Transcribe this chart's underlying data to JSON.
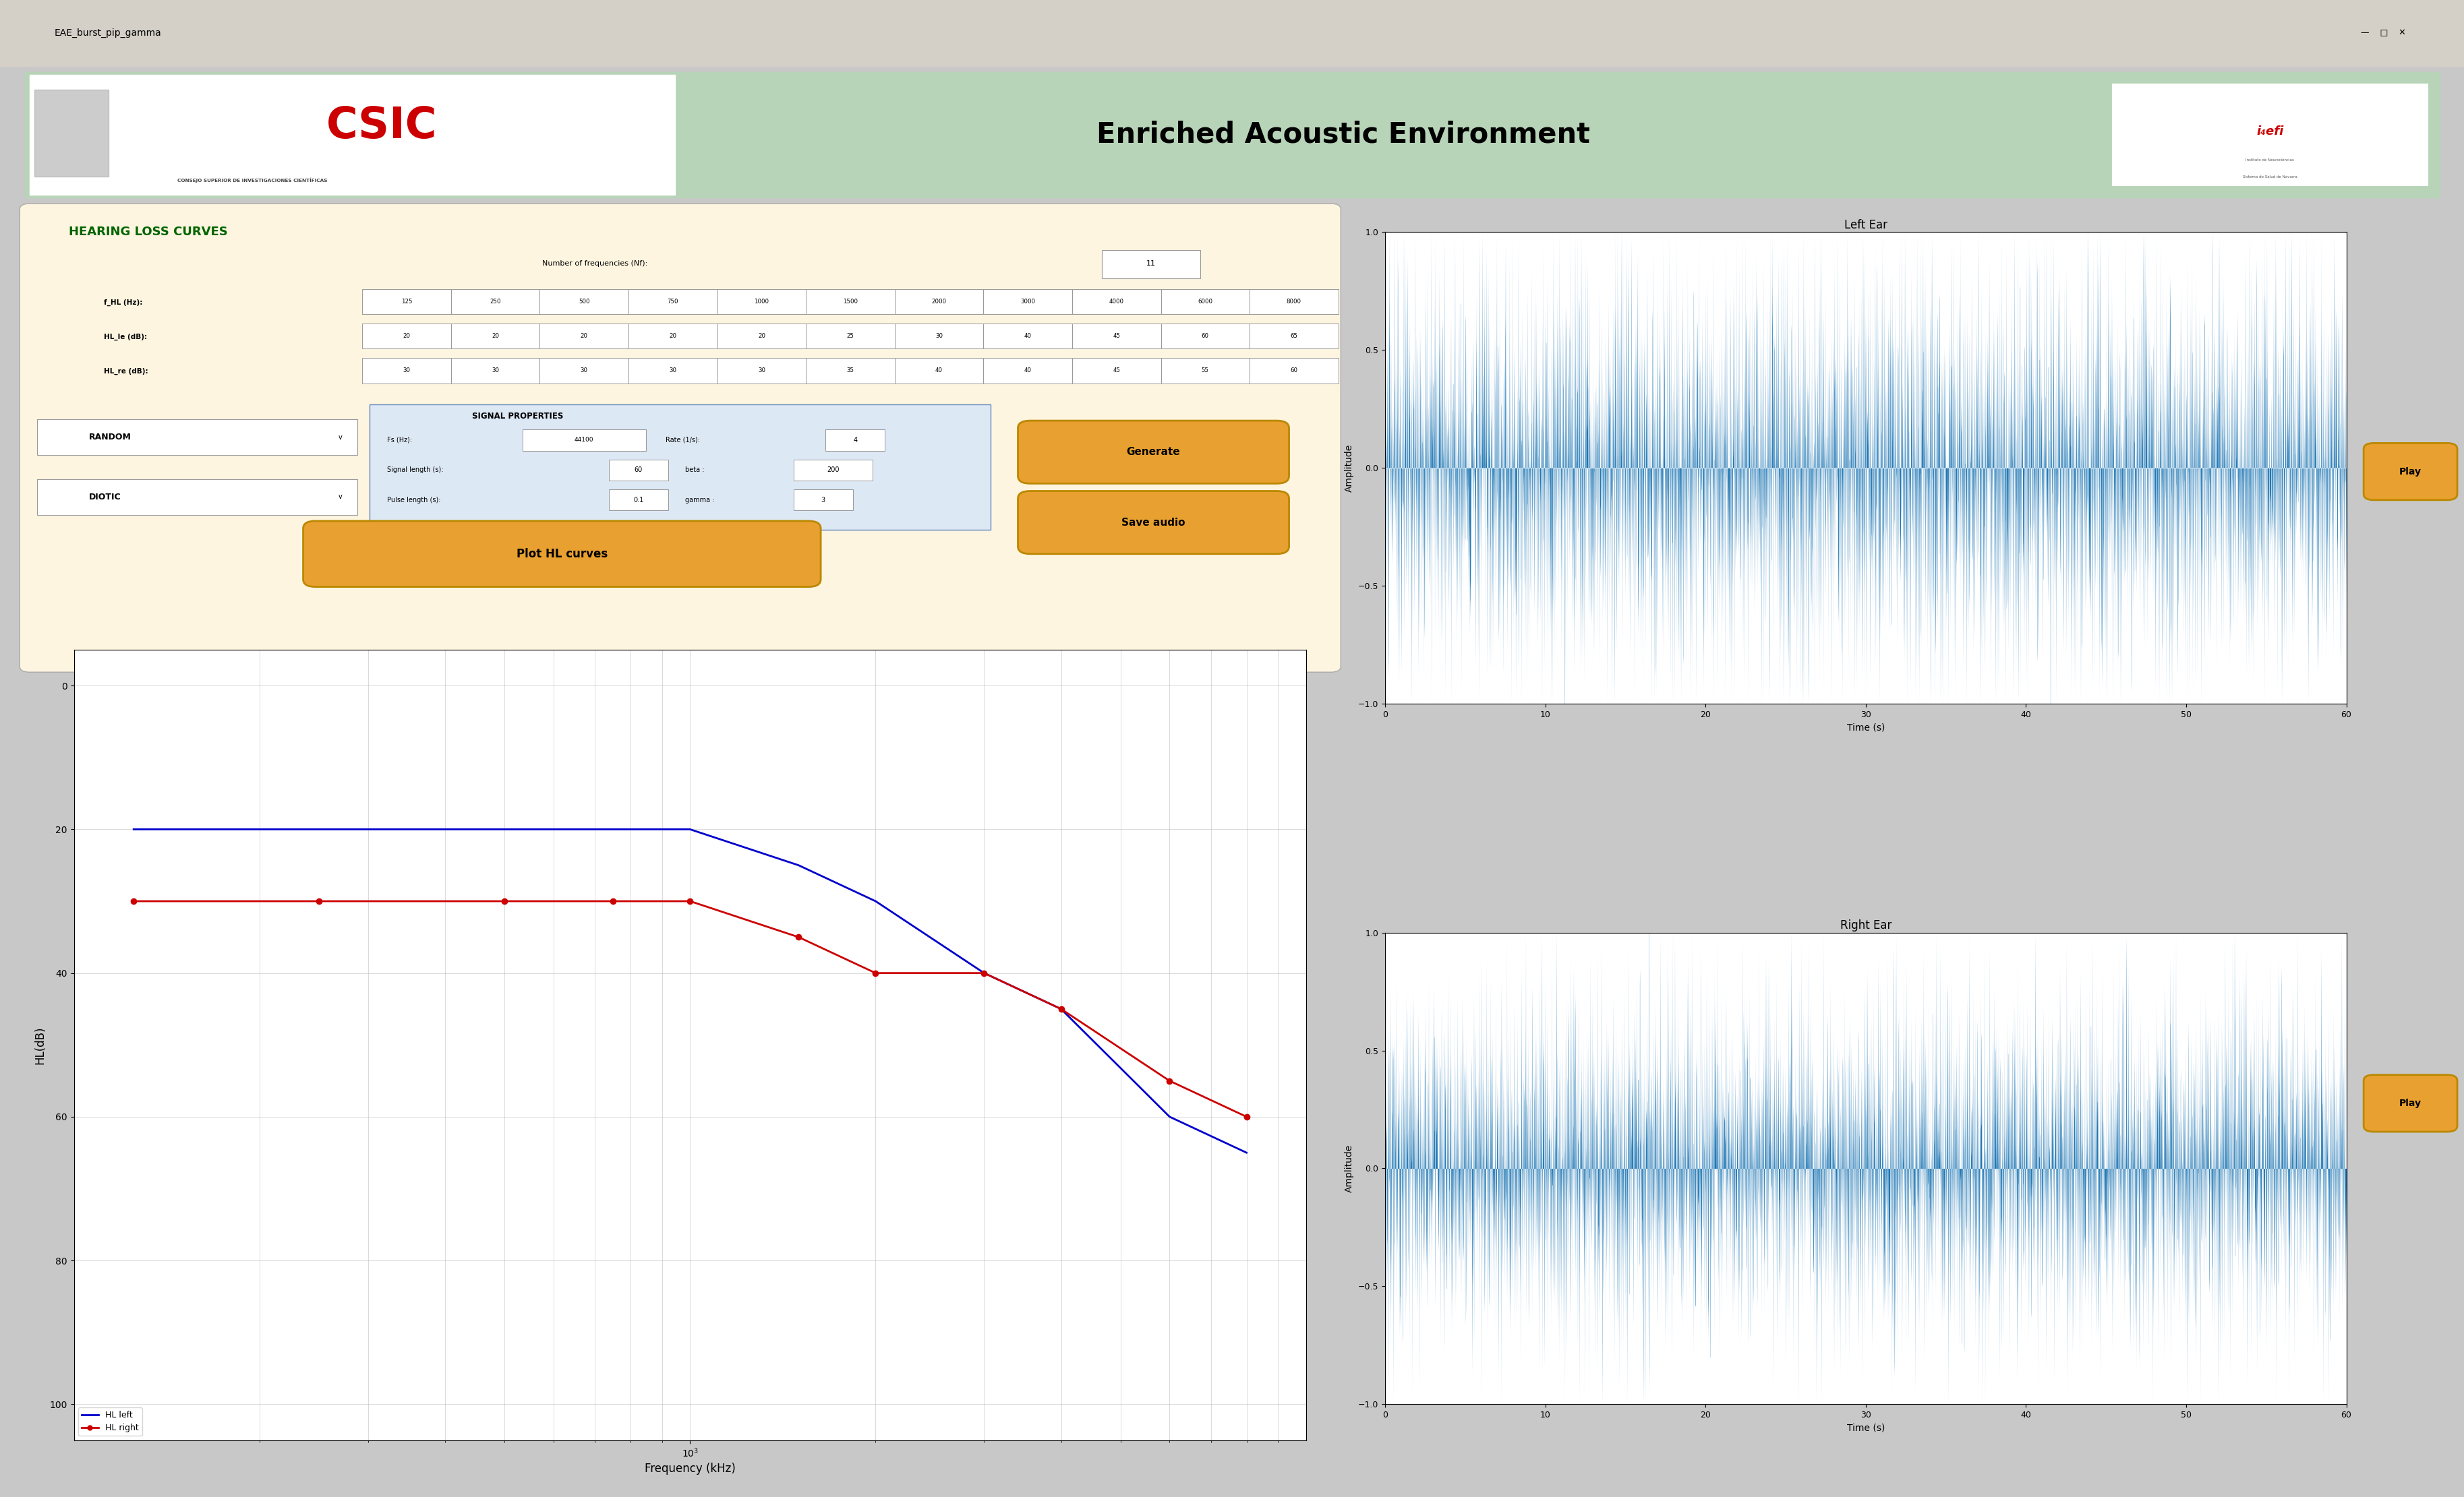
{
  "title": "Enriched Acoustic Environment",
  "window_title": "EAE_burst_pip_gamma",
  "bg_color": "#c8c8c8",
  "header_bg": "#b8d4b8",
  "panel_bg": "#fdf5e0",
  "hearing_loss_title": "HEARING LOSS CURVES",
  "hearing_loss_title_color": "#006400",
  "f_HL_label": "f_HL (Hz):",
  "HL_le_label": "HL_le (dB):",
  "HL_re_label": "HL_re (dB):",
  "f_HL_values": [
    "125",
    "250",
    "500",
    "750",
    "1000",
    "1500",
    "2000",
    "3000",
    "4000",
    "6000",
    "8000"
  ],
  "HL_le_values": [
    "20",
    "20",
    "20",
    "20",
    "20",
    "25",
    "30",
    "40",
    "45",
    "60",
    "65"
  ],
  "HL_re_values": [
    "30",
    "30",
    "30",
    "30",
    "30",
    "35",
    "40",
    "40",
    "45",
    "55",
    "60"
  ],
  "nf_label": "Number of frequencies (Nf):",
  "nf_value": "11",
  "signal_props_title": "SIGNAL PROPERTIES",
  "fs_label": "Fs (Hz):",
  "fs_value": "44100",
  "rate_label": "Rate (1/s):",
  "rate_value": "4",
  "signal_length_label": "Signal length (s):",
  "signal_length_value": "60",
  "beta_label": "beta :",
  "beta_value": "200",
  "pulse_length_label": "Pulse length (s):",
  "pulse_length_value": "0.1",
  "gamma_label": "gamma :",
  "gamma_value": "3",
  "random_label": "RANDOM",
  "diotic_label": "DIOTIC",
  "generate_btn": "Generate",
  "save_btn": "Save audio",
  "plot_btn": "Plot HL curves",
  "play_btn": "Play",
  "left_ear_title": "Left Ear",
  "right_ear_title": "Right Ear",
  "xlabel_time": "Time (s)",
  "ylabel_amplitude": "Amplitude",
  "xlabel_freq": "Frequency (kHz)",
  "ylabel_hl": "HL(dB)",
  "hl_left_color": "#0000cc",
  "hl_right_color": "#cc0000",
  "waveform_color": "#1f77b4",
  "f_HL_freqs": [
    125,
    250,
    500,
    750,
    1000,
    1500,
    2000,
    3000,
    4000,
    6000,
    8000
  ],
  "HL_le_data": [
    20,
    20,
    20,
    20,
    20,
    25,
    30,
    40,
    45,
    60,
    65
  ],
  "HL_re_data": [
    30,
    30,
    30,
    30,
    30,
    35,
    40,
    40,
    45,
    55,
    60
  ],
  "btn_color": "#e8a030",
  "plot_bg": "#ffffff"
}
